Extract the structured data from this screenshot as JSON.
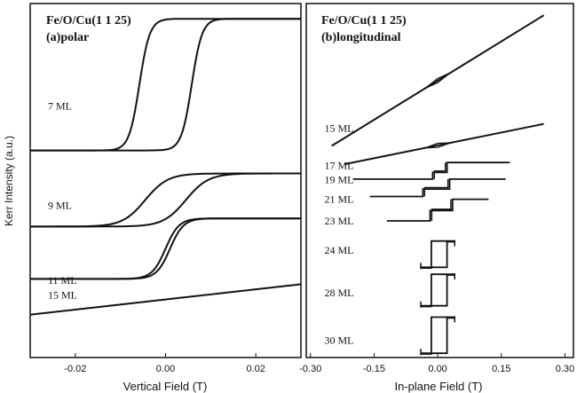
{
  "y_axis_label": "Kerr Intensity (a.u.)",
  "chart_data": [
    {
      "type": "line",
      "title": "Fe/O/Cu(1 1 25)",
      "subtitle": "(a)polar",
      "xlabel": "Vertical Field (T)",
      "ylabel": "Kerr Intensity (a.u.)",
      "xlim": [
        -0.03,
        0.03
      ],
      "ylim": [
        0,
        1
      ],
      "grid": false,
      "x_ticks": [
        {
          "value": -0.02,
          "label": "-0.02"
        },
        {
          "value": 0.0,
          "label": "0.00"
        },
        {
          "value": 0.02,
          "label": "0.02"
        }
      ],
      "series": [
        {
          "name": "7 ML",
          "label_y": 0.71,
          "loop": "square",
          "y_low": 0.585,
          "y_high": 0.957,
          "x_center": 0.0,
          "half_width": 0.0058,
          "width": 0.0023
        },
        {
          "name": "9 ML",
          "label_y": 0.43,
          "loop": "square",
          "y_low": 0.37,
          "y_high": 0.52,
          "x_center": 0.0,
          "half_width": 0.0045,
          "width": 0.005
        },
        {
          "name": "11 ML",
          "label_y": 0.218,
          "loop": "narrow",
          "y_low": 0.222,
          "y_high": 0.393,
          "x_center": 0.0005,
          "half_width": 0.0005,
          "width": 0.003
        },
        {
          "name": "15 ML",
          "label_y": 0.177,
          "loop": "linear",
          "y_at_xmin": 0.121,
          "y_at_xmax": 0.207
        }
      ]
    },
    {
      "type": "line",
      "title": "Fe/O/Cu(1 1 25)",
      "subtitle": "(b)longitudinal",
      "xlabel": "In-plane Field (T)",
      "ylim": [
        0,
        1
      ],
      "xlim": [
        -0.31,
        0.32
      ],
      "grid": false,
      "x_ticks": [
        {
          "value": -0.3,
          "label": "-0.30"
        },
        {
          "value": -0.15,
          "label": "-0.15"
        },
        {
          "value": 0.0,
          "label": "0.00"
        },
        {
          "value": 0.15,
          "label": "0.15"
        },
        {
          "value": 0.3,
          "label": "0.30"
        }
      ],
      "series": [
        {
          "name": "15 ML",
          "label_y": 0.648,
          "kind": "linear",
          "x_min": -0.25,
          "x_max": 0.25,
          "y_at_min": 0.598,
          "y_at_max": 0.967,
          "loop_half": 0.03
        },
        {
          "name": "17 ML",
          "label_y": 0.543,
          "kind": "linear",
          "x_min": -0.22,
          "x_max": 0.25,
          "y_at_min": 0.546,
          "y_at_max": 0.66,
          "loop_half": 0.03
        },
        {
          "name": "19 ML",
          "label_y": 0.502,
          "kind": "steps",
          "x_min": -0.2,
          "x_max": 0.17,
          "y_low": 0.504,
          "y_high": 0.551,
          "y_mid": 0.523,
          "step1": -0.012,
          "step2": 0.022
        },
        {
          "name": "21 ML",
          "label_y": 0.447,
          "kind": "steps",
          "x_min": -0.16,
          "x_max": 0.16,
          "y_low": 0.455,
          "y_high": 0.504,
          "y_mid": 0.476,
          "step1": -0.035,
          "step2": 0.028
        },
        {
          "name": "23 ML",
          "label_y": 0.386,
          "kind": "steps",
          "x_min": -0.12,
          "x_max": 0.12,
          "y_low": 0.386,
          "y_high": 0.447,
          "y_mid": 0.415,
          "step1": -0.018,
          "step2": 0.035
        },
        {
          "name": "24 ML",
          "label_y": 0.303,
          "kind": "square",
          "x_min": -0.04,
          "x_max": 0.04,
          "y_low": 0.255,
          "y_high": 0.327,
          "sw_left": -0.015,
          "sw_right": 0.022
        },
        {
          "name": "28 ML",
          "label_y": 0.183,
          "kind": "square",
          "x_min": -0.04,
          "x_max": 0.04,
          "y_low": 0.146,
          "y_high": 0.233,
          "sw_left": -0.015,
          "sw_right": 0.022
        },
        {
          "name": "30 ML",
          "label_y": 0.049,
          "kind": "square",
          "x_min": -0.04,
          "x_max": 0.04,
          "y_low": 0.012,
          "y_high": 0.112,
          "sw_left": -0.015,
          "sw_right": 0.022
        }
      ]
    }
  ]
}
